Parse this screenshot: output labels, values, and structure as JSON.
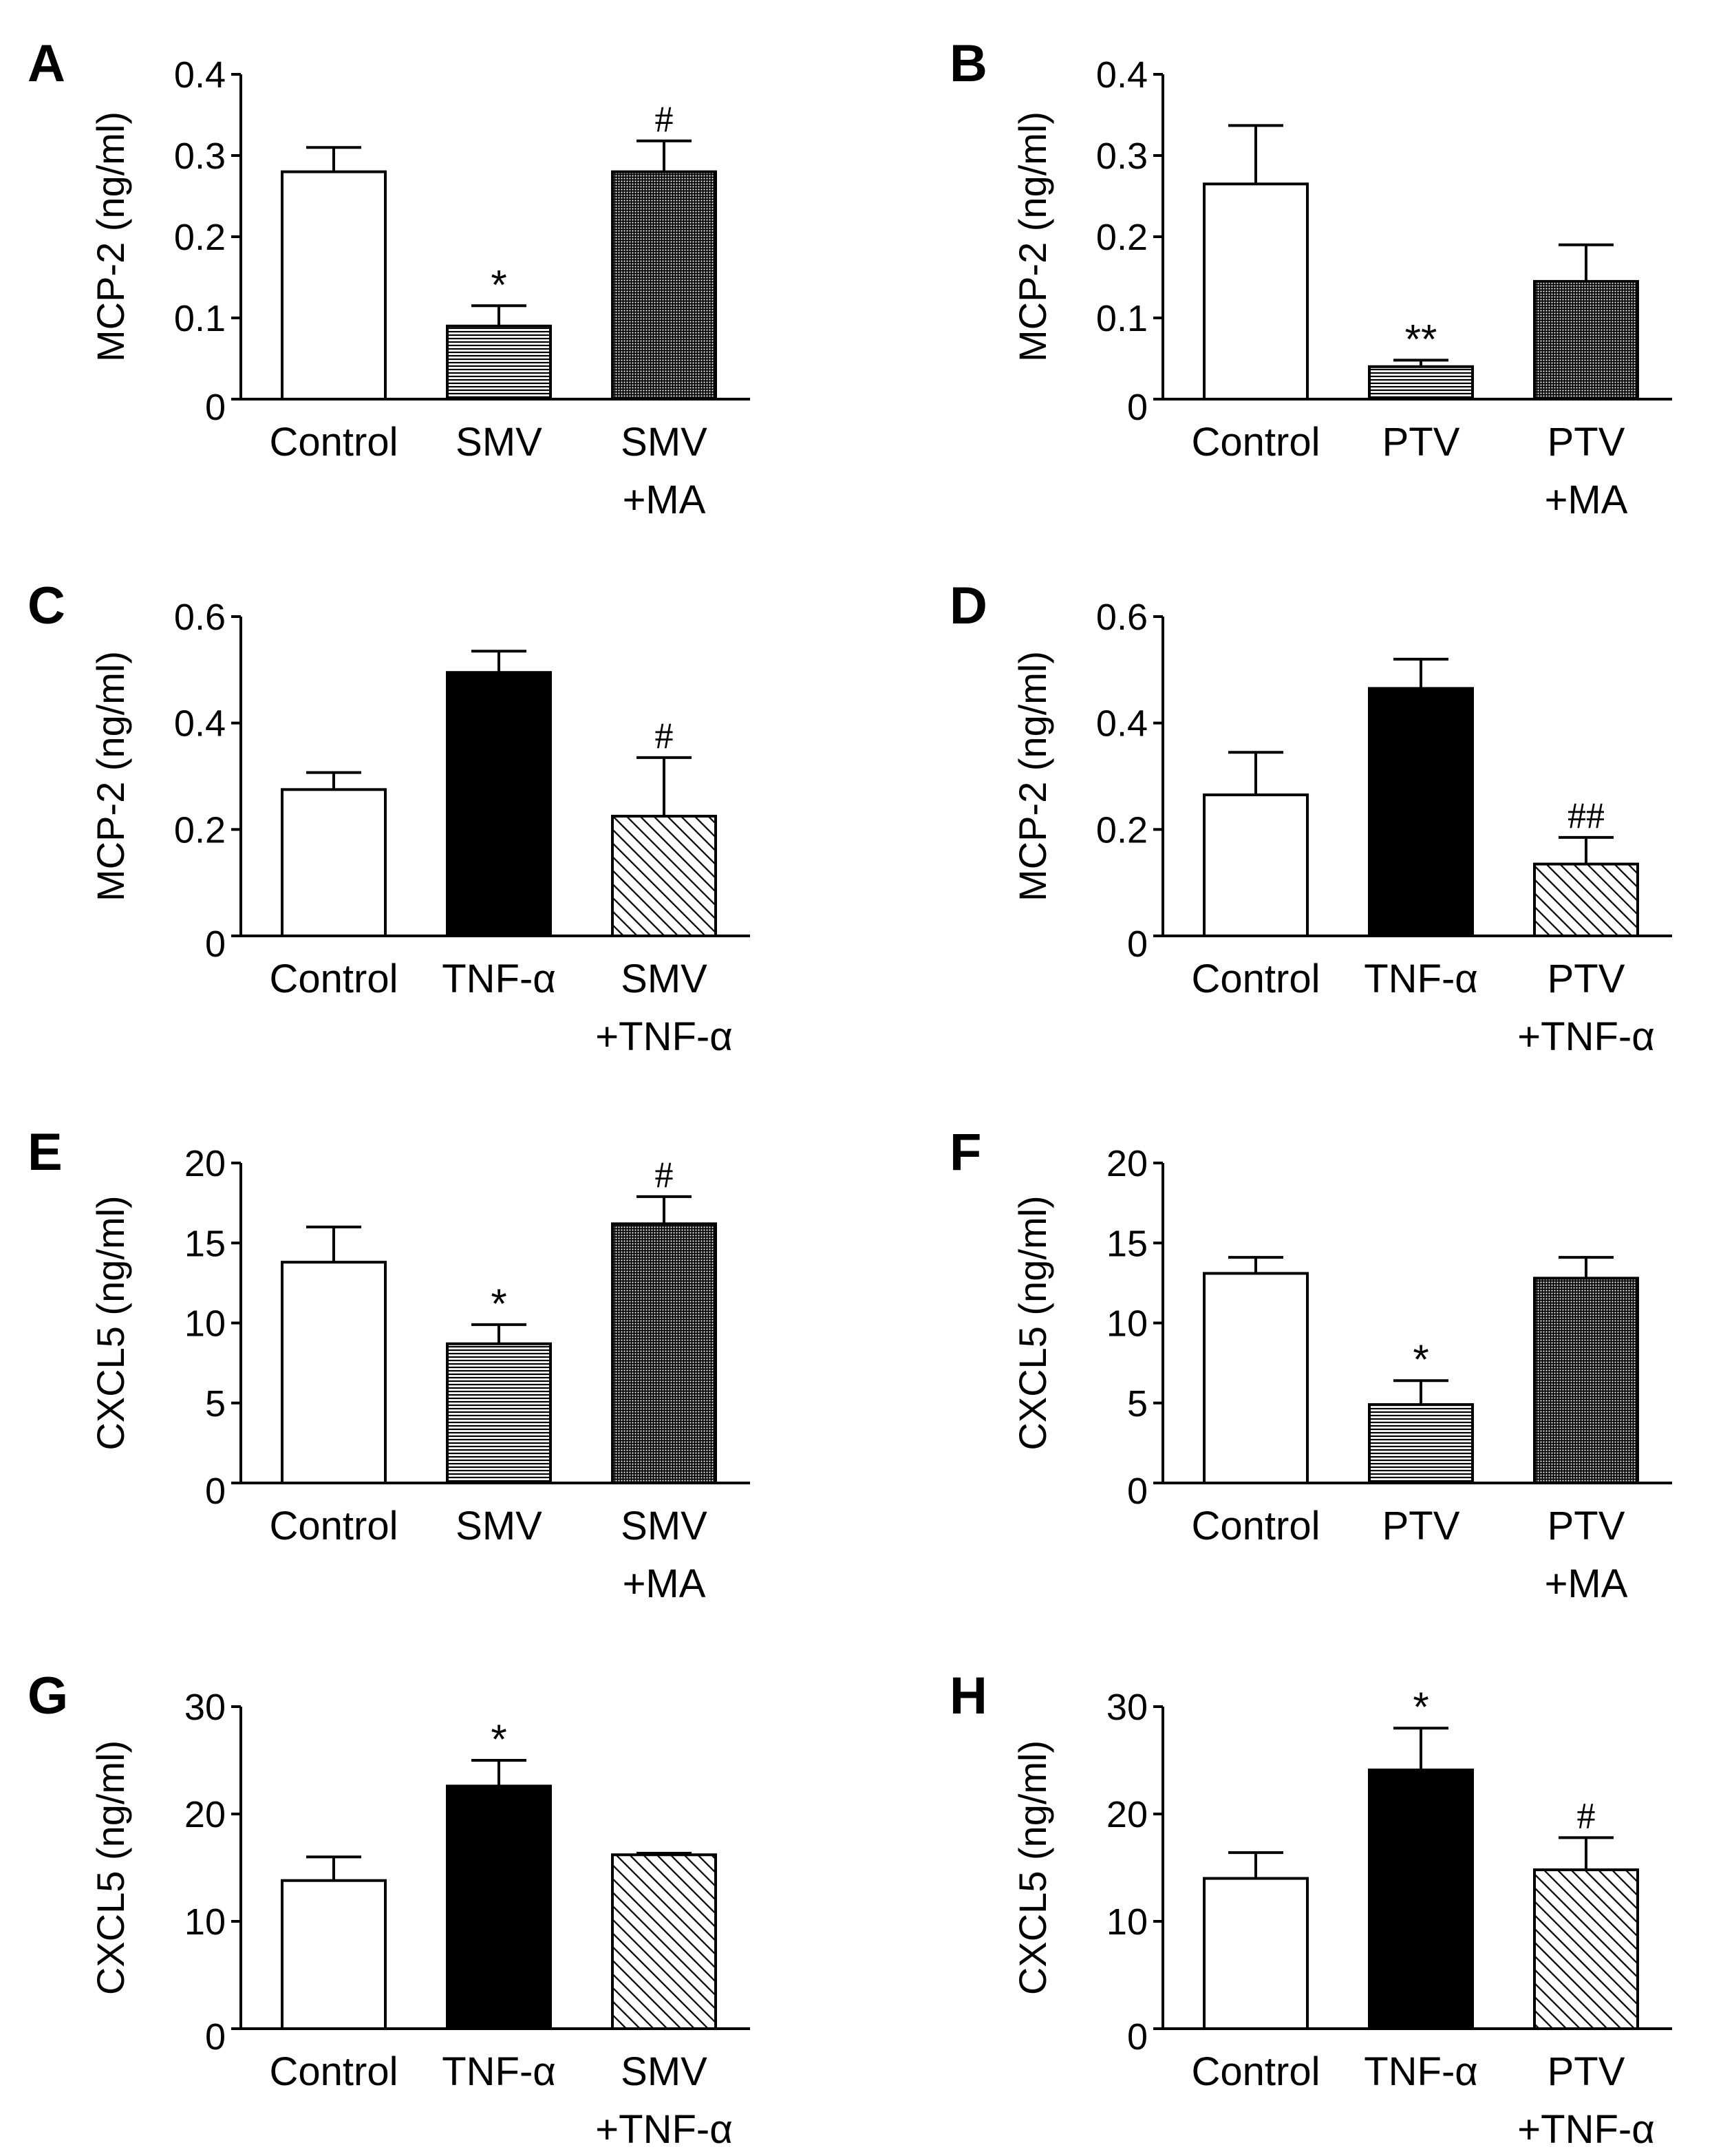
{
  "chart_data": [
    {
      "panel": "A",
      "type": "bar",
      "ylabel": "MCP-2 (ng/ml)",
      "ylim": [
        0,
        0.4
      ],
      "yticks": [
        "0",
        "0.1",
        "0.2",
        "0.3",
        "0.4"
      ],
      "categories": [
        [
          "Control"
        ],
        [
          "SMV"
        ],
        [
          "SMV",
          "+MA"
        ]
      ],
      "values": [
        0.28,
        0.09,
        0.28
      ],
      "errors": [
        0.03,
        0.025,
        0.038
      ],
      "fills": [
        "white",
        "hlines",
        "grid"
      ],
      "annotations": [
        "",
        "*",
        "#"
      ]
    },
    {
      "panel": "B",
      "type": "bar",
      "ylabel": "MCP-2 (ng/ml)",
      "ylim": [
        0,
        0.4
      ],
      "yticks": [
        "0",
        "0.1",
        "0.2",
        "0.3",
        "0.4"
      ],
      "categories": [
        [
          "Control"
        ],
        [
          "PTV"
        ],
        [
          "PTV",
          "+MA"
        ]
      ],
      "values": [
        0.265,
        0.04,
        0.145
      ],
      "errors": [
        0.072,
        0.008,
        0.045
      ],
      "fills": [
        "white",
        "hlines",
        "grid"
      ],
      "annotations": [
        "",
        "**",
        ""
      ]
    },
    {
      "panel": "C",
      "type": "bar",
      "ylabel": "MCP-2 (ng/ml)",
      "ylim": [
        0,
        0.6
      ],
      "yticks": [
        "0",
        "0.2",
        "0.4",
        "0.6"
      ],
      "categories": [
        [
          "Control"
        ],
        [
          "TNF-α"
        ],
        [
          "SMV",
          "+TNF-α"
        ]
      ],
      "values": [
        0.275,
        0.495,
        0.225
      ],
      "errors": [
        0.032,
        0.04,
        0.11
      ],
      "fills": [
        "white",
        "black",
        "diag"
      ],
      "annotations": [
        "",
        "",
        "#"
      ]
    },
    {
      "panel": "D",
      "type": "bar",
      "ylabel": "MCP-2 (ng/ml)",
      "ylim": [
        0,
        0.6
      ],
      "yticks": [
        "0",
        "0.2",
        "0.4",
        "0.6"
      ],
      "categories": [
        [
          "Control"
        ],
        [
          "TNF-α"
        ],
        [
          "PTV",
          "+TNF-α"
        ]
      ],
      "values": [
        0.265,
        0.465,
        0.135
      ],
      "errors": [
        0.08,
        0.055,
        0.05
      ],
      "fills": [
        "white",
        "black",
        "diag"
      ],
      "annotations": [
        "",
        "",
        "##"
      ]
    },
    {
      "panel": "E",
      "type": "bar",
      "ylabel": "CXCL5 (ng/ml)",
      "ylim": [
        0,
        20
      ],
      "yticks": [
        "0",
        "5",
        "10",
        "15",
        "20"
      ],
      "categories": [
        [
          "Control"
        ],
        [
          "SMV"
        ],
        [
          "SMV",
          "+MA"
        ]
      ],
      "values": [
        13.8,
        8.7,
        16.2
      ],
      "errors": [
        2.2,
        1.2,
        1.7
      ],
      "fills": [
        "white",
        "hlines",
        "grid"
      ],
      "annotations": [
        "",
        "*",
        "#"
      ]
    },
    {
      "panel": "F",
      "type": "bar",
      "ylabel": "CXCL5 (ng/ml)",
      "ylim": [
        0,
        20
      ],
      "yticks": [
        "0",
        "5",
        "10",
        "15",
        "20"
      ],
      "categories": [
        [
          "Control"
        ],
        [
          "PTV"
        ],
        [
          "PTV",
          "+MA"
        ]
      ],
      "values": [
        13.1,
        4.9,
        12.8
      ],
      "errors": [
        1.0,
        1.5,
        1.3
      ],
      "fills": [
        "white",
        "hlines",
        "grid"
      ],
      "annotations": [
        "",
        "*",
        ""
      ]
    },
    {
      "panel": "G",
      "type": "bar",
      "ylabel": "CXCL5 (ng/ml)",
      "ylim": [
        0,
        30
      ],
      "yticks": [
        "0",
        "10",
        "20",
        "30"
      ],
      "categories": [
        [
          "Control"
        ],
        [
          "TNF-α"
        ],
        [
          "SMV",
          "+TNF-α"
        ]
      ],
      "values": [
        13.8,
        22.6,
        16.2
      ],
      "errors": [
        2.2,
        2.4,
        0.15
      ],
      "fills": [
        "white",
        "black",
        "diag"
      ],
      "annotations": [
        "",
        "*",
        ""
      ]
    },
    {
      "panel": "H",
      "type": "bar",
      "ylabel": "CXCL5 (ng/ml)",
      "ylim": [
        0,
        30
      ],
      "yticks": [
        "0",
        "10",
        "20",
        "30"
      ],
      "categories": [
        [
          "Control"
        ],
        [
          "TNF-α"
        ],
        [
          "PTV",
          "+TNF-α"
        ]
      ],
      "values": [
        14.0,
        24.1,
        14.8
      ],
      "errors": [
        2.4,
        3.9,
        3.0
      ],
      "fills": [
        "white",
        "black",
        "diag"
      ],
      "annotations": [
        "",
        "*",
        "#"
      ]
    }
  ]
}
